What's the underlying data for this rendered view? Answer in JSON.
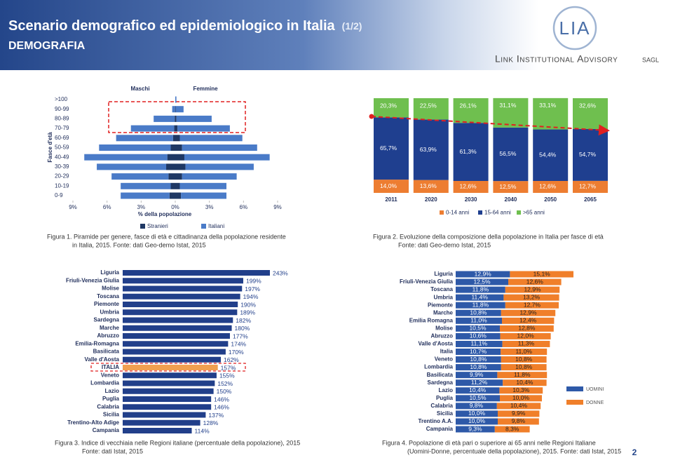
{
  "header": {
    "title": "Scenario demografico ed epidemiologico in Italia",
    "part": "(1/2)",
    "section": "DEMOGRAFIA"
  },
  "logo": {
    "initials": "LIA",
    "name": "Link Institutional Advisory",
    "suffix": "SAGL"
  },
  "page_number": "2",
  "chart_data": [
    {
      "type": "pyramid",
      "caption": [
        "Figura 1. Piramide per genere, fasce di età e cittadinanza della popolazione residente",
        "in Italia, 2015. Fonte: dati Geo-demo Istat, 2015"
      ],
      "ylabel": "Fasce d'età",
      "xlabel": "% della popolazione",
      "sides": [
        "Maschi",
        "Femmine"
      ],
      "categories": [
        ">100",
        "90-99",
        "80-89",
        "70-79",
        "60-69",
        "50-59",
        "40-49",
        "30-39",
        "20-29",
        "10-19",
        "0-9"
      ],
      "series": [
        {
          "name": "Stranieri",
          "color": "#1f3864",
          "male": [
            0,
            -0.02,
            -0.05,
            -0.1,
            -0.2,
            -0.4,
            -0.7,
            -0.8,
            -0.6,
            -0.4,
            -0.5
          ],
          "female": [
            0,
            0.03,
            0.1,
            0.2,
            0.4,
            0.6,
            0.8,
            0.9,
            0.6,
            0.4,
            0.5
          ]
        },
        {
          "name": "Italiani",
          "color": "#4a7bc8",
          "male": [
            0,
            -0.25,
            -1.85,
            -3.8,
            -5.0,
            -6.3,
            -7.3,
            -6.1,
            -5.0,
            -4.4,
            -4.3
          ],
          "female": [
            0.1,
            0.7,
            3.1,
            4.6,
            5.5,
            6.6,
            7.5,
            6.0,
            4.8,
            4.1,
            4.0
          ]
        }
      ],
      "xlim": [
        -9,
        9
      ],
      "xticks": [
        {
          "value": -9,
          "label": "9%"
        },
        {
          "value": -6,
          "label": "6%"
        },
        {
          "value": -3,
          "label": "3%"
        },
        {
          "value": 0,
          "label": "0%"
        },
        {
          "value": 3,
          "label": "3%"
        },
        {
          "value": 6,
          "label": "6%"
        },
        {
          "value": 9,
          "label": "9%"
        }
      ]
    },
    {
      "type": "column",
      "caption": [
        "Figura 2. Evoluzione della composizione della popolazione in Italia per fasce di età",
        "Fonte: dati Geo-demo Istat, 2015"
      ],
      "categories": [
        "2011",
        "2020",
        "2030",
        "2040",
        "2050",
        "2065"
      ],
      "ylim": [
        0,
        100
      ],
      "series": [
        {
          "name": "0-14 anni",
          "color": "#ed7d31",
          "values": [
            14.0,
            13.6,
            12.6,
            12.5,
            12.6,
            12.7
          ],
          "value_labels": [
            "14,0%",
            "13,6%",
            "12,6%",
            "12,5%",
            "12,6%",
            "12,7%"
          ]
        },
        {
          "name": "15-64 anni",
          "color": "#1f3f8f",
          "values": [
            65.7,
            63.9,
            61.3,
            56.5,
            54.4,
            54.7
          ],
          "value_labels": [
            "65,7%",
            "63,9%",
            "61,3%",
            "56,5%",
            "54,4%",
            "54,7%"
          ]
        },
        {
          "name": ">65 anni",
          "color": "#6fbf4f",
          "values": [
            20.3,
            22.5,
            26.1,
            31.1,
            33.1,
            32.6
          ],
          "value_labels": [
            "20,3%",
            "22,5%",
            "26,1%",
            "31,1%",
            "33,1%",
            "32,6%"
          ]
        }
      ]
    },
    {
      "type": "barh",
      "caption": [
        "Figura 3. Indice di vecchiaia nelle Regioni italiane (percentuale della popolazione), 2015",
        "Fonte: dati Istat, 2015"
      ],
      "categories": [
        "Liguria",
        "Friuli-Venezia Giulia",
        "Molise",
        "Toscana",
        "Piemonte",
        "Umbria",
        "Sardegna",
        "Marche",
        "Abruzzo",
        "Emilia-Romagna",
        "Basilicata",
        "Valle d'Aosta",
        "ITALIA",
        "Veneto",
        "Lombardia",
        "Lazio",
        "Puglia",
        "Calabria",
        "Sicilia",
        "Trentino-Alto Adige",
        "Campania"
      ],
      "values": [
        243,
        199,
        197,
        194,
        190,
        189,
        182,
        180,
        177,
        174,
        170,
        162,
        157,
        155,
        152,
        150,
        146,
        146,
        137,
        128,
        114
      ],
      "value_labels": [
        "243%",
        "199%",
        "197%",
        "194%",
        "190%",
        "189%",
        "182%",
        "180%",
        "177%",
        "174%",
        "170%",
        "162%",
        "157%",
        "155%",
        "152%",
        "150%",
        "146%",
        "146%",
        "137%",
        "128%",
        "114%"
      ],
      "color": "#213f8a",
      "highlight": 12,
      "highlight_color": "#f0a050"
    },
    {
      "type": "barh",
      "caption": [
        "Figura 4. Popolazione di età pari o superiore ai 65 anni nelle Regioni Italiane",
        "(Uomini-Donne, percentuale della popolazione), 2015. Fonte: dati Istat, 2015"
      ],
      "categories": [
        "Liguria",
        "Friuli-Venezia Giulia",
        "Toscana",
        "Umbria",
        "Piemonte",
        "Marche",
        "Emilia Romagna",
        "Molise",
        "Abruzzo",
        "Valle d'Aosta",
        "Italia",
        "Veneto",
        "Lombardia",
        "Basilicata",
        "Sardegna",
        "Lazio",
        "Puglia",
        "Calabria",
        "Sicilia",
        "Trentino A.A.",
        "Campania"
      ],
      "series": [
        {
          "name": "UOMINI",
          "color": "#2e59a8",
          "values": [
            12.9,
            12.5,
            11.8,
            11.4,
            11.8,
            10.8,
            11.0,
            10.5,
            10.6,
            11.1,
            10.7,
            10.8,
            10.8,
            9.9,
            11.2,
            10.4,
            10.5,
            9.8,
            10.0,
            10.0,
            9.3
          ],
          "value_labels": [
            "12,9%",
            "12,5%",
            "11,8%",
            "11,4%",
            "11,8%",
            "10,8%",
            "11,0%",
            "10,5%",
            "10,6%",
            "11,1%",
            "10,7%",
            "10,8%",
            "10,8%",
            "9,9%",
            "11,2%",
            "10,4%",
            "10,5%",
            "9,8%",
            "10,0%",
            "10,0%",
            "9,3%"
          ]
        },
        {
          "name": "DONNE",
          "color": "#f07f2a",
          "values": [
            15.1,
            12.6,
            12.9,
            13.2,
            12.7,
            12.9,
            12.4,
            12.8,
            12.0,
            11.3,
            11.0,
            10.8,
            10.8,
            11.8,
            10.4,
            10.3,
            10.0,
            10.4,
            9.9,
            9.8,
            8.3
          ],
          "value_labels": [
            "15,1%",
            "12,6%",
            "12,9%",
            "13,2%",
            "12,7%",
            "12,9%",
            "12,4%",
            "12,8%",
            "12,0%",
            "11,3%",
            "11,0%",
            "10,8%",
            "10,8%",
            "11,8%",
            "10,4%",
            "10,3%",
            "10,0%",
            "10,4%",
            "9,9%",
            "9,8%",
            "8,3%"
          ]
        }
      ]
    }
  ]
}
